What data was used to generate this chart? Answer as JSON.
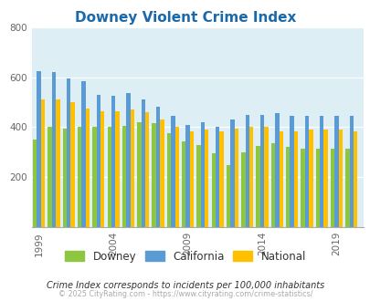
{
  "title": "Downey Violent Crime Index",
  "title_color": "#1a6aab",
  "subtitle": "Crime Index corresponds to incidents per 100,000 inhabitants",
  "footer": "© 2025 CityRating.com - https://www.cityrating.com/crime-statistics/",
  "years": [
    1999,
    2000,
    2001,
    2002,
    2003,
    2004,
    2005,
    2006,
    2007,
    2008,
    2009,
    2010,
    2011,
    2012,
    2013,
    2014,
    2015,
    2016,
    2017,
    2018,
    2019,
    2020
  ],
  "downey": [
    350,
    400,
    395,
    400,
    400,
    400,
    405,
    420,
    415,
    375,
    345,
    330,
    295,
    250,
    300,
    325,
    335,
    320,
    315,
    315,
    315,
    315
  ],
  "california": [
    625,
    620,
    595,
    585,
    530,
    525,
    535,
    510,
    480,
    445,
    410,
    420,
    400,
    430,
    450,
    450,
    455,
    445,
    445,
    445,
    445,
    445
  ],
  "national": [
    510,
    510,
    500,
    475,
    465,
    465,
    470,
    460,
    430,
    400,
    385,
    390,
    385,
    395,
    400,
    400,
    385,
    385,
    390,
    390,
    390,
    385
  ],
  "downey_color": "#8dc63f",
  "california_color": "#5b9bd5",
  "national_color": "#ffc000",
  "plot_bg": "#ddeef5",
  "ylim": [
    0,
    800
  ],
  "yticks": [
    200,
    400,
    600,
    800
  ],
  "xtick_labels": [
    "1999",
    "2004",
    "2009",
    "2014",
    "2019"
  ],
  "xtick_positions": [
    1999,
    2004,
    2009,
    2014,
    2019
  ],
  "legend_labels": [
    "Downey",
    "California",
    "National"
  ]
}
